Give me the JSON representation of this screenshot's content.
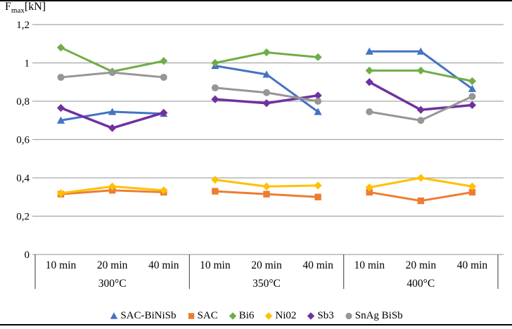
{
  "figure": {
    "title": {
      "symbol": "F",
      "subscript": "max",
      "unit": "[kN]"
    }
  },
  "chart_data": {
    "type": "line",
    "title": "Fmax [kN]",
    "ylabel": "Fmax [kN]",
    "ylim": [
      0,
      1.2
    ],
    "ytick_values": [
      0,
      0.2,
      0.4,
      0.6,
      0.8,
      1.0,
      1.2
    ],
    "ytick_labels": [
      "0",
      "0,2",
      "0,4",
      "0,6",
      "0,8",
      "1",
      "1,2"
    ],
    "grid": true,
    "legend_position": "bottom",
    "group_labels": [
      "300°C",
      "350°C",
      "400°C"
    ],
    "time_labels": [
      "10 min",
      "20 min",
      "40 min"
    ],
    "series": [
      {
        "name": "SAC-BiNiSb",
        "color": "#4472C4",
        "marker": "triangle",
        "values": [
          [
            0.7,
            0.745,
            0.735
          ],
          [
            0.985,
            0.94,
            0.745
          ],
          [
            1.06,
            1.06,
            0.865
          ]
        ]
      },
      {
        "name": "SAC",
        "color": "#ED7D31",
        "marker": "square",
        "values": [
          [
            0.315,
            0.335,
            0.325
          ],
          [
            0.33,
            0.315,
            0.3
          ],
          [
            0.325,
            0.28,
            0.325
          ]
        ]
      },
      {
        "name": "Bi6",
        "color": "#70AD47",
        "marker": "diamond",
        "values": [
          [
            1.08,
            0.955,
            1.01
          ],
          [
            1.0,
            1.055,
            1.03
          ],
          [
            0.96,
            0.96,
            0.905
          ]
        ]
      },
      {
        "name": "Ni02",
        "color": "#FFC000",
        "marker": "diamond",
        "values": [
          [
            0.32,
            0.355,
            0.335
          ],
          [
            0.39,
            0.355,
            0.36
          ],
          [
            0.35,
            0.4,
            0.355
          ]
        ]
      },
      {
        "name": "Sb3",
        "color": "#7030A0",
        "marker": "diamond",
        "values": [
          [
            0.765,
            0.66,
            0.74
          ],
          [
            0.81,
            0.79,
            0.83
          ],
          [
            0.9,
            0.755,
            0.78
          ]
        ]
      },
      {
        "name": "SnAg BiSb",
        "color": "#969696",
        "marker": "circle",
        "values": [
          [
            0.925,
            0.95,
            0.925
          ],
          [
            0.87,
            0.845,
            0.8
          ],
          [
            0.745,
            0.7,
            0.825
          ]
        ]
      }
    ],
    "style": {
      "gridline_color": "#A6A6A6",
      "separator_color": "#595959"
    }
  }
}
